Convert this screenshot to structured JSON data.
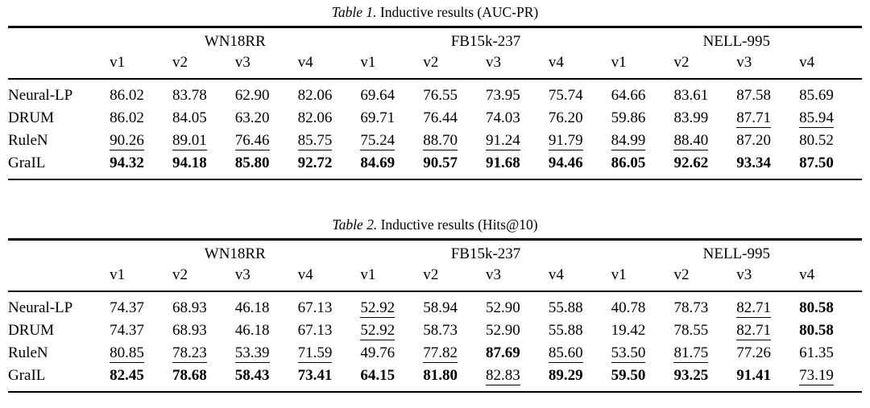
{
  "page": {
    "background_color": "#ffffff",
    "text_color": "#000000"
  },
  "tables": [
    {
      "caption_label": "Table 1.",
      "caption_text": "Inductive results (AUC-PR)",
      "group_headers": [
        "WN18RR",
        "FB15k-237",
        "NELL-995"
      ],
      "version_headers": [
        "v1",
        "v2",
        "v3",
        "v4",
        "v1",
        "v2",
        "v3",
        "v4",
        "v1",
        "v2",
        "v3",
        "v4"
      ],
      "rows": [
        {
          "label": "Neural-LP",
          "values": [
            "86.02",
            "83.78",
            "62.90",
            "82.06",
            "69.64",
            "76.55",
            "73.95",
            "75.74",
            "64.66",
            "83.61",
            "87.58",
            "85.69"
          ],
          "styles": [
            "",
            "",
            "",
            "",
            "",
            "",
            "",
            "",
            "",
            "",
            "",
            ""
          ]
        },
        {
          "label": "DRUM",
          "values": [
            "86.02",
            "84.05",
            "63.20",
            "82.06",
            "69.71",
            "76.44",
            "74.03",
            "76.20",
            "59.86",
            "83.99",
            "87.71",
            "85.94"
          ],
          "styles": [
            "",
            "",
            "",
            "",
            "",
            "",
            "",
            "",
            "",
            "",
            "u",
            "u"
          ]
        },
        {
          "label": "RuleN",
          "values": [
            "90.26",
            "89.01",
            "76.46",
            "85.75",
            "75.24",
            "88.70",
            "91.24",
            "91.79",
            "84.99",
            "88.40",
            "87.20",
            "80.52"
          ],
          "styles": [
            "u",
            "u",
            "u",
            "u",
            "u",
            "u",
            "u",
            "u",
            "u",
            "u",
            "",
            ""
          ]
        },
        {
          "label": "GraIL",
          "values": [
            "94.32",
            "94.18",
            "85.80",
            "92.72",
            "84.69",
            "90.57",
            "91.68",
            "94.46",
            "86.05",
            "92.62",
            "93.34",
            "87.50"
          ],
          "styles": [
            "b",
            "b",
            "b",
            "b",
            "b",
            "b",
            "b",
            "b",
            "b",
            "b",
            "b",
            "b"
          ]
        }
      ]
    },
    {
      "caption_label": "Table 2.",
      "caption_text": "Inductive results (Hits@10)",
      "group_headers": [
        "WN18RR",
        "FB15k-237",
        "NELL-995"
      ],
      "version_headers": [
        "v1",
        "v2",
        "v3",
        "v4",
        "v1",
        "v2",
        "v3",
        "v4",
        "v1",
        "v2",
        "v3",
        "v4"
      ],
      "rows": [
        {
          "label": "Neural-LP",
          "values": [
            "74.37",
            "68.93",
            "46.18",
            "67.13",
            "52.92",
            "58.94",
            "52.90",
            "55.88",
            "40.78",
            "78.73",
            "82.71",
            "80.58"
          ],
          "styles": [
            "",
            "",
            "",
            "",
            "u",
            "",
            "",
            "",
            "",
            "",
            "u",
            "b"
          ]
        },
        {
          "label": "DRUM",
          "values": [
            "74.37",
            "68.93",
            "46.18",
            "67.13",
            "52.92",
            "58.73",
            "52.90",
            "55.88",
            "19.42",
            "78.55",
            "82.71",
            "80.58"
          ],
          "styles": [
            "",
            "",
            "",
            "",
            "u",
            "",
            "",
            "",
            "",
            "",
            "u",
            "b"
          ]
        },
        {
          "label": "RuleN",
          "values": [
            "80.85",
            "78.23",
            "53.39",
            "71.59",
            "49.76",
            "77.82",
            "87.69",
            "85.60",
            "53.50",
            "81.75",
            "77.26",
            "61.35"
          ],
          "styles": [
            "u",
            "u",
            "u",
            "u",
            "",
            "u",
            "b",
            "u",
            "u",
            "u",
            "",
            ""
          ]
        },
        {
          "label": "GraIL",
          "values": [
            "82.45",
            "78.68",
            "58.43",
            "73.41",
            "64.15",
            "81.80",
            "82.83",
            "89.29",
            "59.50",
            "93.25",
            "91.41",
            "73.19"
          ],
          "styles": [
            "b",
            "b",
            "b",
            "b",
            "b",
            "b",
            "u",
            "b",
            "b",
            "b",
            "b",
            "u"
          ]
        }
      ]
    }
  ]
}
